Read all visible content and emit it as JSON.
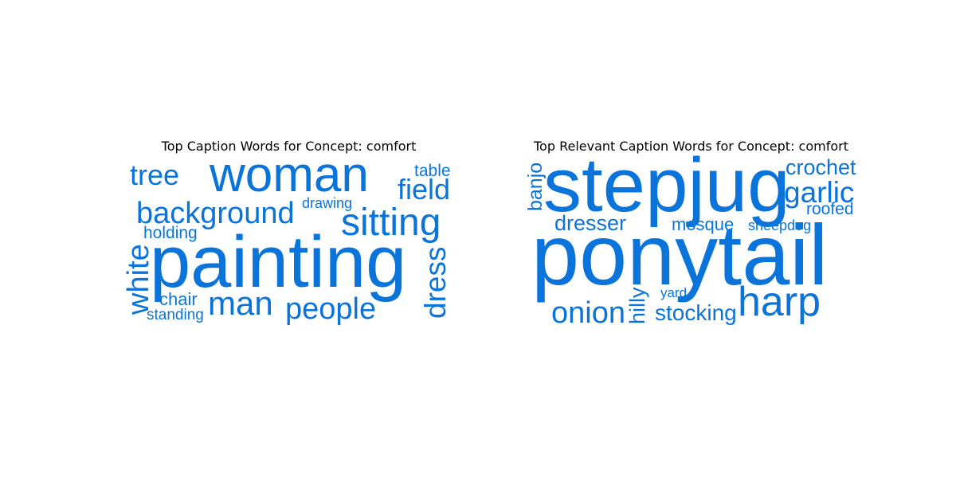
{
  "chart_data": [
    {
      "type": "wordcloud",
      "title": "Top Caption Words for Concept: comfort",
      "color": "#0a74da",
      "words": [
        {
          "text": "painting",
          "weight": 100
        },
        {
          "text": "woman",
          "weight": 65
        },
        {
          "text": "sitting",
          "weight": 50
        },
        {
          "text": "background",
          "weight": 40
        },
        {
          "text": "man",
          "weight": 44
        },
        {
          "text": "people",
          "weight": 38
        },
        {
          "text": "white",
          "weight": 36
        },
        {
          "text": "dress",
          "weight": 36
        },
        {
          "text": "field",
          "weight": 36
        },
        {
          "text": "tree",
          "weight": 36
        },
        {
          "text": "chair",
          "weight": 24
        },
        {
          "text": "holding",
          "weight": 22
        },
        {
          "text": "table",
          "weight": 22
        },
        {
          "text": "standing",
          "weight": 21
        },
        {
          "text": "drawing",
          "weight": 20
        }
      ]
    },
    {
      "type": "wordcloud",
      "title": "Top Relevant Caption Words for Concept: comfort",
      "color": "#0a74da",
      "words": [
        {
          "text": "ponytail",
          "weight": 100
        },
        {
          "text": "stepjug",
          "weight": 86
        },
        {
          "text": "harp",
          "weight": 52
        },
        {
          "text": "onion",
          "weight": 40
        },
        {
          "text": "garlic",
          "weight": 38
        },
        {
          "text": "stocking",
          "weight": 30
        },
        {
          "text": "dresser",
          "weight": 28
        },
        {
          "text": "crochet",
          "weight": 28
        },
        {
          "text": "hilly",
          "weight": 28
        },
        {
          "text": "banjo",
          "weight": 26
        },
        {
          "text": "mosque",
          "weight": 24
        },
        {
          "text": "roofed",
          "weight": 22
        },
        {
          "text": "sheepdog",
          "weight": 19
        },
        {
          "text": "yard",
          "weight": 18
        }
      ]
    }
  ]
}
